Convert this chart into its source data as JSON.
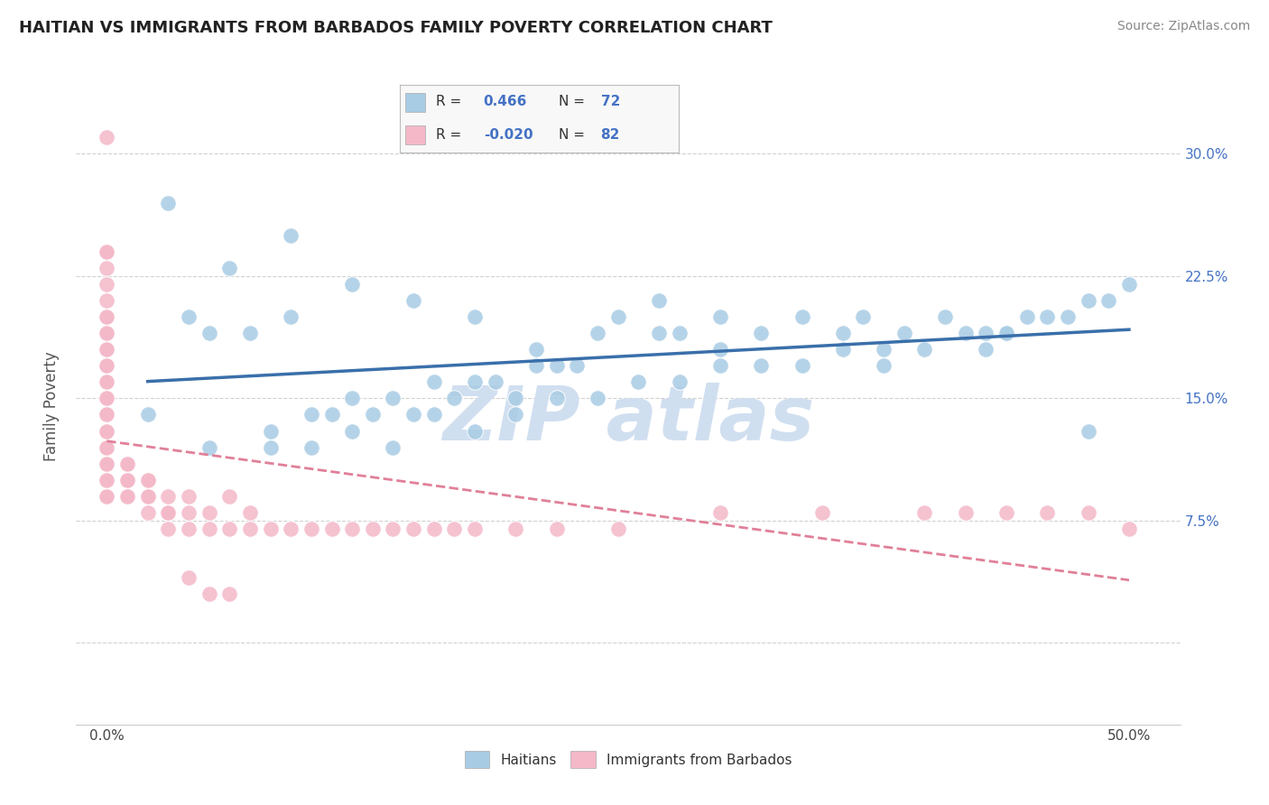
{
  "title": "HAITIAN VS IMMIGRANTS FROM BARBADOS FAMILY POVERTY CORRELATION CHART",
  "source": "Source: ZipAtlas.com",
  "ylabel_label": "Family Poverty",
  "xlim": [
    -0.015,
    0.525
  ],
  "ylim": [
    -0.05,
    0.34
  ],
  "blue_color": "#a8cce4",
  "pink_color": "#f4b8c8",
  "blue_line_color": "#3a6faa",
  "pink_line_color": "#e08098",
  "watermark": "ZIP atlas",
  "watermark_color": "#d0dff0",
  "legend_label_blue": "Haitians",
  "legend_label_pink": "Immigrants from Barbados",
  "R_blue_str": "0.466",
  "N_blue_str": "72",
  "R_pink_str": "-0.020",
  "N_pink_str": "82",
  "blue_scatter_x": [
    0.02,
    0.04,
    0.05,
    0.07,
    0.08,
    0.09,
    0.1,
    0.11,
    0.12,
    0.13,
    0.14,
    0.15,
    0.16,
    0.17,
    0.18,
    0.19,
    0.2,
    0.21,
    0.22,
    0.23,
    0.25,
    0.27,
    0.28,
    0.3,
    0.32,
    0.34,
    0.36,
    0.37,
    0.39,
    0.41,
    0.43,
    0.44,
    0.45,
    0.47,
    0.49,
    0.05,
    0.08,
    0.1,
    0.12,
    0.14,
    0.16,
    0.18,
    0.2,
    0.22,
    0.24,
    0.26,
    0.28,
    0.3,
    0.32,
    0.34,
    0.36,
    0.38,
    0.4,
    0.42,
    0.44,
    0.46,
    0.48,
    0.5,
    0.03,
    0.06,
    0.09,
    0.12,
    0.15,
    0.18,
    0.21,
    0.24,
    0.27,
    0.3,
    0.38,
    0.43,
    0.48
  ],
  "blue_scatter_y": [
    0.14,
    0.2,
    0.19,
    0.19,
    0.13,
    0.2,
    0.14,
    0.14,
    0.15,
    0.14,
    0.15,
    0.14,
    0.16,
    0.15,
    0.16,
    0.16,
    0.15,
    0.17,
    0.17,
    0.17,
    0.2,
    0.19,
    0.19,
    0.2,
    0.19,
    0.2,
    0.19,
    0.2,
    0.19,
    0.2,
    0.19,
    0.19,
    0.2,
    0.2,
    0.21,
    0.12,
    0.12,
    0.12,
    0.13,
    0.12,
    0.14,
    0.13,
    0.14,
    0.15,
    0.15,
    0.16,
    0.16,
    0.17,
    0.17,
    0.17,
    0.18,
    0.18,
    0.18,
    0.19,
    0.19,
    0.2,
    0.21,
    0.22,
    0.27,
    0.23,
    0.25,
    0.22,
    0.21,
    0.2,
    0.18,
    0.19,
    0.21,
    0.18,
    0.17,
    0.18,
    0.13
  ],
  "pink_scatter_x": [
    0.0,
    0.0,
    0.0,
    0.0,
    0.0,
    0.0,
    0.0,
    0.0,
    0.0,
    0.0,
    0.0,
    0.0,
    0.0,
    0.0,
    0.0,
    0.0,
    0.0,
    0.0,
    0.0,
    0.0,
    0.0,
    0.0,
    0.0,
    0.0,
    0.0,
    0.0,
    0.0,
    0.0,
    0.0,
    0.0,
    0.01,
    0.01,
    0.01,
    0.01,
    0.01,
    0.01,
    0.01,
    0.02,
    0.02,
    0.02,
    0.02,
    0.02,
    0.03,
    0.03,
    0.03,
    0.03,
    0.04,
    0.04,
    0.04,
    0.05,
    0.05,
    0.06,
    0.06,
    0.07,
    0.07,
    0.08,
    0.09,
    0.1,
    0.11,
    0.12,
    0.13,
    0.14,
    0.15,
    0.16,
    0.17,
    0.18,
    0.2,
    0.22,
    0.25,
    0.3,
    0.35,
    0.4,
    0.42,
    0.44,
    0.46,
    0.48,
    0.5,
    0.04,
    0.05,
    0.06
  ],
  "pink_scatter_y": [
    0.31,
    0.24,
    0.24,
    0.23,
    0.22,
    0.21,
    0.2,
    0.2,
    0.19,
    0.19,
    0.18,
    0.18,
    0.17,
    0.17,
    0.16,
    0.16,
    0.15,
    0.15,
    0.14,
    0.14,
    0.13,
    0.13,
    0.12,
    0.12,
    0.11,
    0.11,
    0.1,
    0.1,
    0.09,
    0.09,
    0.11,
    0.11,
    0.1,
    0.1,
    0.1,
    0.09,
    0.09,
    0.1,
    0.1,
    0.09,
    0.09,
    0.08,
    0.09,
    0.08,
    0.08,
    0.07,
    0.09,
    0.08,
    0.07,
    0.08,
    0.07,
    0.09,
    0.07,
    0.08,
    0.07,
    0.07,
    0.07,
    0.07,
    0.07,
    0.07,
    0.07,
    0.07,
    0.07,
    0.07,
    0.07,
    0.07,
    0.07,
    0.07,
    0.07,
    0.08,
    0.08,
    0.08,
    0.08,
    0.08,
    0.08,
    0.08,
    0.07,
    0.04,
    0.03,
    0.03
  ]
}
